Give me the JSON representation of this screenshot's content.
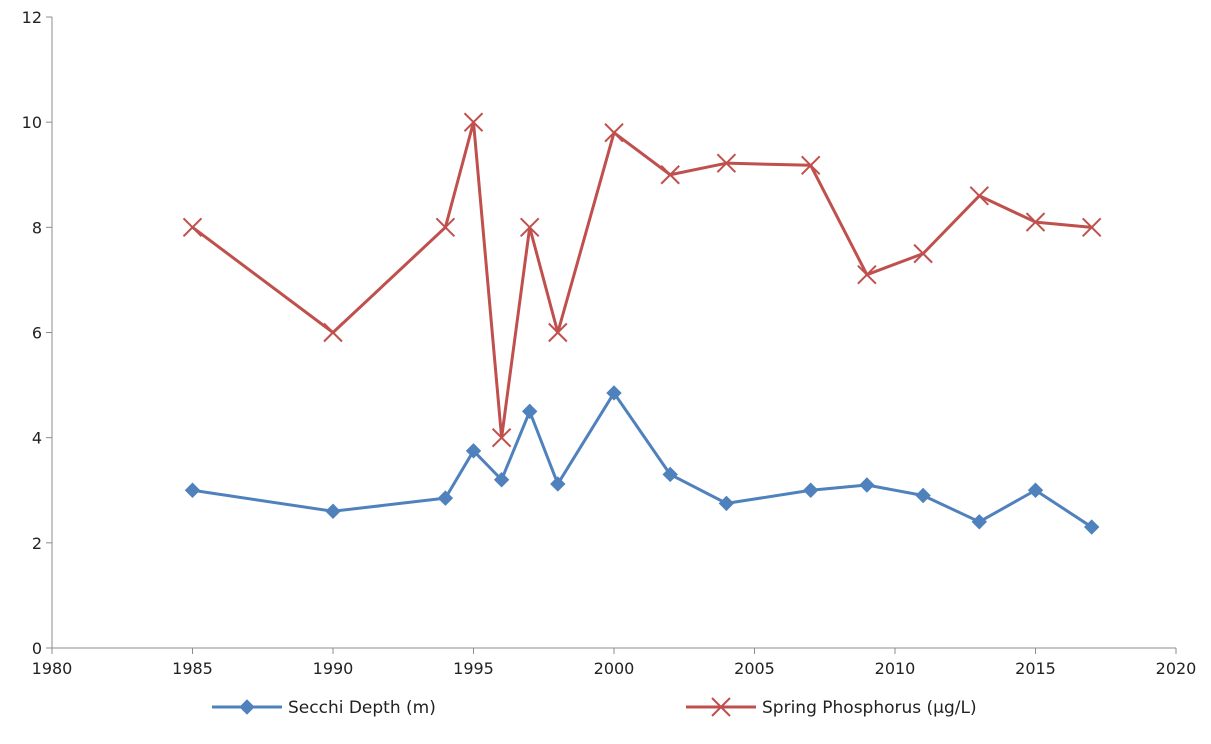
{
  "chart_data": {
    "type": "scatter",
    "title": "",
    "xlabel": "",
    "ylabel": "",
    "xlim": [
      1980,
      2020
    ],
    "ylim": [
      0,
      12
    ],
    "x_ticks": [
      1980,
      1985,
      1990,
      1995,
      2000,
      2005,
      2010,
      2015,
      2020
    ],
    "y_ticks": [
      0,
      2,
      4,
      6,
      8,
      10,
      12
    ],
    "x_tick_labels": [
      "1980",
      "1985",
      "1990",
      "1995",
      "2000",
      "2005",
      "2010",
      "2015",
      "2020"
    ],
    "y_tick_labels": [
      "0",
      "2",
      "4",
      "6",
      "8",
      "10",
      "12"
    ],
    "grid": false,
    "legend_position": "bottom",
    "series": [
      {
        "name": "Secchi Depth (m)",
        "color": "#4f81bd",
        "marker": "diamond",
        "x": [
          1985,
          1990,
          1994,
          1995,
          1996,
          1997,
          1998,
          2000,
          2002,
          2004,
          2007,
          2009,
          2011,
          2013,
          2015,
          2017
        ],
        "y": [
          3.0,
          2.6,
          2.85,
          3.75,
          3.2,
          4.5,
          3.12,
          4.85,
          3.3,
          2.75,
          3.0,
          3.1,
          2.9,
          2.4,
          3.0,
          2.3
        ]
      },
      {
        "name": "Spring Phosphorus (µg/L)",
        "color": "#c0504d",
        "marker": "x",
        "x": [
          1985,
          1990,
          1994,
          1995,
          1996,
          1997,
          1998,
          2000,
          2002,
          2004,
          2007,
          2009,
          2011,
          2013,
          2015,
          2017
        ],
        "y": [
          8.0,
          6.0,
          8.0,
          10.0,
          4.0,
          8.0,
          6.0,
          9.8,
          9.0,
          9.22,
          9.18,
          7.1,
          7.5,
          8.6,
          8.1,
          8.0
        ]
      }
    ]
  }
}
